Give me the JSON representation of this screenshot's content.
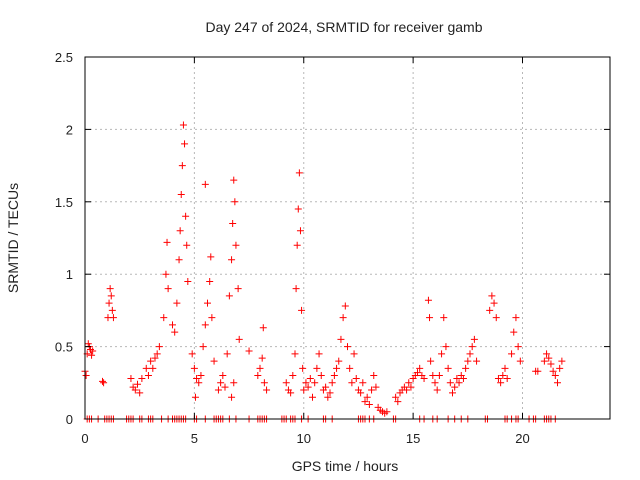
{
  "chart_data": {
    "type": "scatter",
    "title": "Day 247 of 2024, SRMTID for receiver gamb",
    "xlabel": "GPS time / hours",
    "ylabel": "SRMTID / TECUs",
    "xlim": [
      0,
      24
    ],
    "ylim": [
      0,
      2.5
    ],
    "grid": true,
    "marker": "+",
    "color": "#ff0000",
    "xticks": [
      {
        "value": 0,
        "label": "0"
      },
      {
        "value": 5,
        "label": "5"
      },
      {
        "value": 10,
        "label": "10"
      },
      {
        "value": 15,
        "label": "15"
      },
      {
        "value": 20,
        "label": "20"
      }
    ],
    "yticks": [
      {
        "value": 0,
        "label": "0"
      },
      {
        "value": 0.5,
        "label": "0.5"
      },
      {
        "value": 1,
        "label": "1"
      },
      {
        "value": 1.5,
        "label": "1.5"
      },
      {
        "value": 2,
        "label": "2"
      },
      {
        "value": 2.5,
        "label": "2.5"
      }
    ],
    "series": [
      {
        "name": "SRMTID",
        "points": [
          [
            0.0,
            0.33
          ],
          [
            0.05,
            0.3
          ],
          [
            0.1,
            0.45
          ],
          [
            0.15,
            0.52
          ],
          [
            0.2,
            0.5
          ],
          [
            0.25,
            0.48
          ],
          [
            0.3,
            0.44
          ],
          [
            0.35,
            0.47
          ],
          [
            0.8,
            0.26
          ],
          [
            0.85,
            0.25
          ],
          [
            1.05,
            0.7
          ],
          [
            1.1,
            0.8
          ],
          [
            1.15,
            0.9
          ],
          [
            1.2,
            0.85
          ],
          [
            1.25,
            0.75
          ],
          [
            1.3,
            0.7
          ],
          [
            2.1,
            0.28
          ],
          [
            2.2,
            0.22
          ],
          [
            2.3,
            0.2
          ],
          [
            2.4,
            0.24
          ],
          [
            2.5,
            0.18
          ],
          [
            2.6,
            0.28
          ],
          [
            2.8,
            0.35
          ],
          [
            2.9,
            0.3
          ],
          [
            3.0,
            0.4
          ],
          [
            3.1,
            0.35
          ],
          [
            3.2,
            0.42
          ],
          [
            3.3,
            0.45
          ],
          [
            3.4,
            0.5
          ],
          [
            3.6,
            0.7
          ],
          [
            3.7,
            1.0
          ],
          [
            3.75,
            1.22
          ],
          [
            3.8,
            0.9
          ],
          [
            4.0,
            0.65
          ],
          [
            4.1,
            0.6
          ],
          [
            4.2,
            0.8
          ],
          [
            4.3,
            1.1
          ],
          [
            4.35,
            1.3
          ],
          [
            4.4,
            1.55
          ],
          [
            4.45,
            1.75
          ],
          [
            4.5,
            2.03
          ],
          [
            4.55,
            1.9
          ],
          [
            4.6,
            1.4
          ],
          [
            4.65,
            1.2
          ],
          [
            4.7,
            0.95
          ],
          [
            4.9,
            0.45
          ],
          [
            5.0,
            0.35
          ],
          [
            5.05,
            0.15
          ],
          [
            5.1,
            0.28
          ],
          [
            5.2,
            0.25
          ],
          [
            5.3,
            0.3
          ],
          [
            5.4,
            0.5
          ],
          [
            5.5,
            0.65
          ],
          [
            5.6,
            0.8
          ],
          [
            5.7,
            0.95
          ],
          [
            5.75,
            1.12
          ],
          [
            5.8,
            0.7
          ],
          [
            5.9,
            0.4
          ],
          [
            5.5,
            1.62
          ],
          [
            6.1,
            0.2
          ],
          [
            6.2,
            0.25
          ],
          [
            6.3,
            0.3
          ],
          [
            6.4,
            0.22
          ],
          [
            6.5,
            0.45
          ],
          [
            6.6,
            0.85
          ],
          [
            6.7,
            1.1
          ],
          [
            6.75,
            1.35
          ],
          [
            6.8,
            1.65
          ],
          [
            6.85,
            1.5
          ],
          [
            6.9,
            1.2
          ],
          [
            7.0,
            0.9
          ],
          [
            7.05,
            0.55
          ],
          [
            6.8,
            0.25
          ],
          [
            6.7,
            0.15
          ],
          [
            7.5,
            0.47
          ],
          [
            7.9,
            0.3
          ],
          [
            8.0,
            0.35
          ],
          [
            8.1,
            0.42
          ],
          [
            8.15,
            0.63
          ],
          [
            8.2,
            0.25
          ],
          [
            8.3,
            0.2
          ],
          [
            9.2,
            0.25
          ],
          [
            9.3,
            0.2
          ],
          [
            9.4,
            0.18
          ],
          [
            9.5,
            0.3
          ],
          [
            9.6,
            0.45
          ],
          [
            9.65,
            0.9
          ],
          [
            9.7,
            1.2
          ],
          [
            9.75,
            1.45
          ],
          [
            9.8,
            1.7
          ],
          [
            9.85,
            1.3
          ],
          [
            9.9,
            0.75
          ],
          [
            9.95,
            0.35
          ],
          [
            10.0,
            0.2
          ],
          [
            10.1,
            0.25
          ],
          [
            10.2,
            0.22
          ],
          [
            10.3,
            0.28
          ],
          [
            10.4,
            0.15
          ],
          [
            10.5,
            0.25
          ],
          [
            10.6,
            0.35
          ],
          [
            10.7,
            0.45
          ],
          [
            10.8,
            0.3
          ],
          [
            10.9,
            0.2
          ],
          [
            11.0,
            0.22
          ],
          [
            11.1,
            0.15
          ],
          [
            11.2,
            0.18
          ],
          [
            11.3,
            0.25
          ],
          [
            11.4,
            0.3
          ],
          [
            11.5,
            0.35
          ],
          [
            11.6,
            0.4
          ],
          [
            11.7,
            0.55
          ],
          [
            11.8,
            0.7
          ],
          [
            11.9,
            0.78
          ],
          [
            12.0,
            0.5
          ],
          [
            12.1,
            0.35
          ],
          [
            12.2,
            0.25
          ],
          [
            12.3,
            0.45
          ],
          [
            12.4,
            0.28
          ],
          [
            12.5,
            0.2
          ],
          [
            12.6,
            0.18
          ],
          [
            12.7,
            0.25
          ],
          [
            12.8,
            0.12
          ],
          [
            12.9,
            0.15
          ],
          [
            13.0,
            0.1
          ],
          [
            13.1,
            0.2
          ],
          [
            13.2,
            0.3
          ],
          [
            13.3,
            0.22
          ],
          [
            13.4,
            0.08
          ],
          [
            13.5,
            0.06
          ],
          [
            13.6,
            0.05
          ],
          [
            13.7,
            0.04
          ],
          [
            13.8,
            0.05
          ],
          [
            14.2,
            0.15
          ],
          [
            14.3,
            0.12
          ],
          [
            14.4,
            0.18
          ],
          [
            14.5,
            0.2
          ],
          [
            14.6,
            0.22
          ],
          [
            14.7,
            0.2
          ],
          [
            14.8,
            0.25
          ],
          [
            14.9,
            0.22
          ],
          [
            15.0,
            0.28
          ],
          [
            15.1,
            0.3
          ],
          [
            15.2,
            0.32
          ],
          [
            15.3,
            0.35
          ],
          [
            15.4,
            0.3
          ],
          [
            15.5,
            0.28
          ],
          [
            15.7,
            0.82
          ],
          [
            15.75,
            0.7
          ],
          [
            15.8,
            0.4
          ],
          [
            15.9,
            0.3
          ],
          [
            16.0,
            0.25
          ],
          [
            16.1,
            0.2
          ],
          [
            16.2,
            0.3
          ],
          [
            16.3,
            0.45
          ],
          [
            16.4,
            0.7
          ],
          [
            16.5,
            0.5
          ],
          [
            16.6,
            0.35
          ],
          [
            16.7,
            0.25
          ],
          [
            16.8,
            0.18
          ],
          [
            16.9,
            0.22
          ],
          [
            17.0,
            0.28
          ],
          [
            17.1,
            0.25
          ],
          [
            17.2,
            0.3
          ],
          [
            17.3,
            0.28
          ],
          [
            17.4,
            0.35
          ],
          [
            17.5,
            0.4
          ],
          [
            17.6,
            0.45
          ],
          [
            17.7,
            0.5
          ],
          [
            17.8,
            0.55
          ],
          [
            17.9,
            0.4
          ],
          [
            18.5,
            0.75
          ],
          [
            18.6,
            0.85
          ],
          [
            18.7,
            0.8
          ],
          [
            18.8,
            0.7
          ],
          [
            18.9,
            0.28
          ],
          [
            19.0,
            0.25
          ],
          [
            19.1,
            0.3
          ],
          [
            19.2,
            0.35
          ],
          [
            19.3,
            0.28
          ],
          [
            19.5,
            0.45
          ],
          [
            19.6,
            0.6
          ],
          [
            19.7,
            0.7
          ],
          [
            19.8,
            0.5
          ],
          [
            19.9,
            0.4
          ],
          [
            20.6,
            0.33
          ],
          [
            20.7,
            0.33
          ],
          [
            21.0,
            0.4
          ],
          [
            21.1,
            0.45
          ],
          [
            21.2,
            0.42
          ],
          [
            21.3,
            0.38
          ],
          [
            21.4,
            0.33
          ],
          [
            21.5,
            0.3
          ],
          [
            21.6,
            0.25
          ],
          [
            21.7,
            0.35
          ],
          [
            21.8,
            0.4
          ]
        ]
      }
    ],
    "zero_points_x": [
      0.1,
      0.2,
      0.3,
      0.6,
      0.9,
      1.0,
      1.1,
      1.2,
      1.3,
      1.9,
      2.0,
      2.1,
      2.2,
      2.5,
      2.6,
      2.9,
      3.0,
      3.1,
      3.5,
      3.8,
      4.0,
      4.1,
      4.2,
      4.3,
      4.4,
      4.5,
      4.6,
      5.0,
      5.1,
      5.5,
      5.9,
      6.0,
      6.1,
      6.2,
      6.3,
      6.6,
      6.9,
      7.5,
      7.9,
      8.0,
      8.1,
      8.2,
      8.3,
      9.0,
      9.1,
      9.2,
      9.4,
      9.5,
      9.6,
      9.9,
      10.2,
      10.9,
      11.0,
      11.3,
      12.5,
      12.6,
      12.7,
      12.8,
      13.0,
      13.2,
      14.1,
      14.2,
      15.3,
      15.5,
      15.9,
      16.1,
      16.6,
      16.9,
      17.2,
      17.5,
      18.3,
      18.4,
      19.2,
      19.3,
      19.5,
      19.7,
      19.8,
      20.3,
      20.5,
      20.6,
      21.0,
      21.1,
      21.2,
      21.3,
      21.5
    ]
  }
}
